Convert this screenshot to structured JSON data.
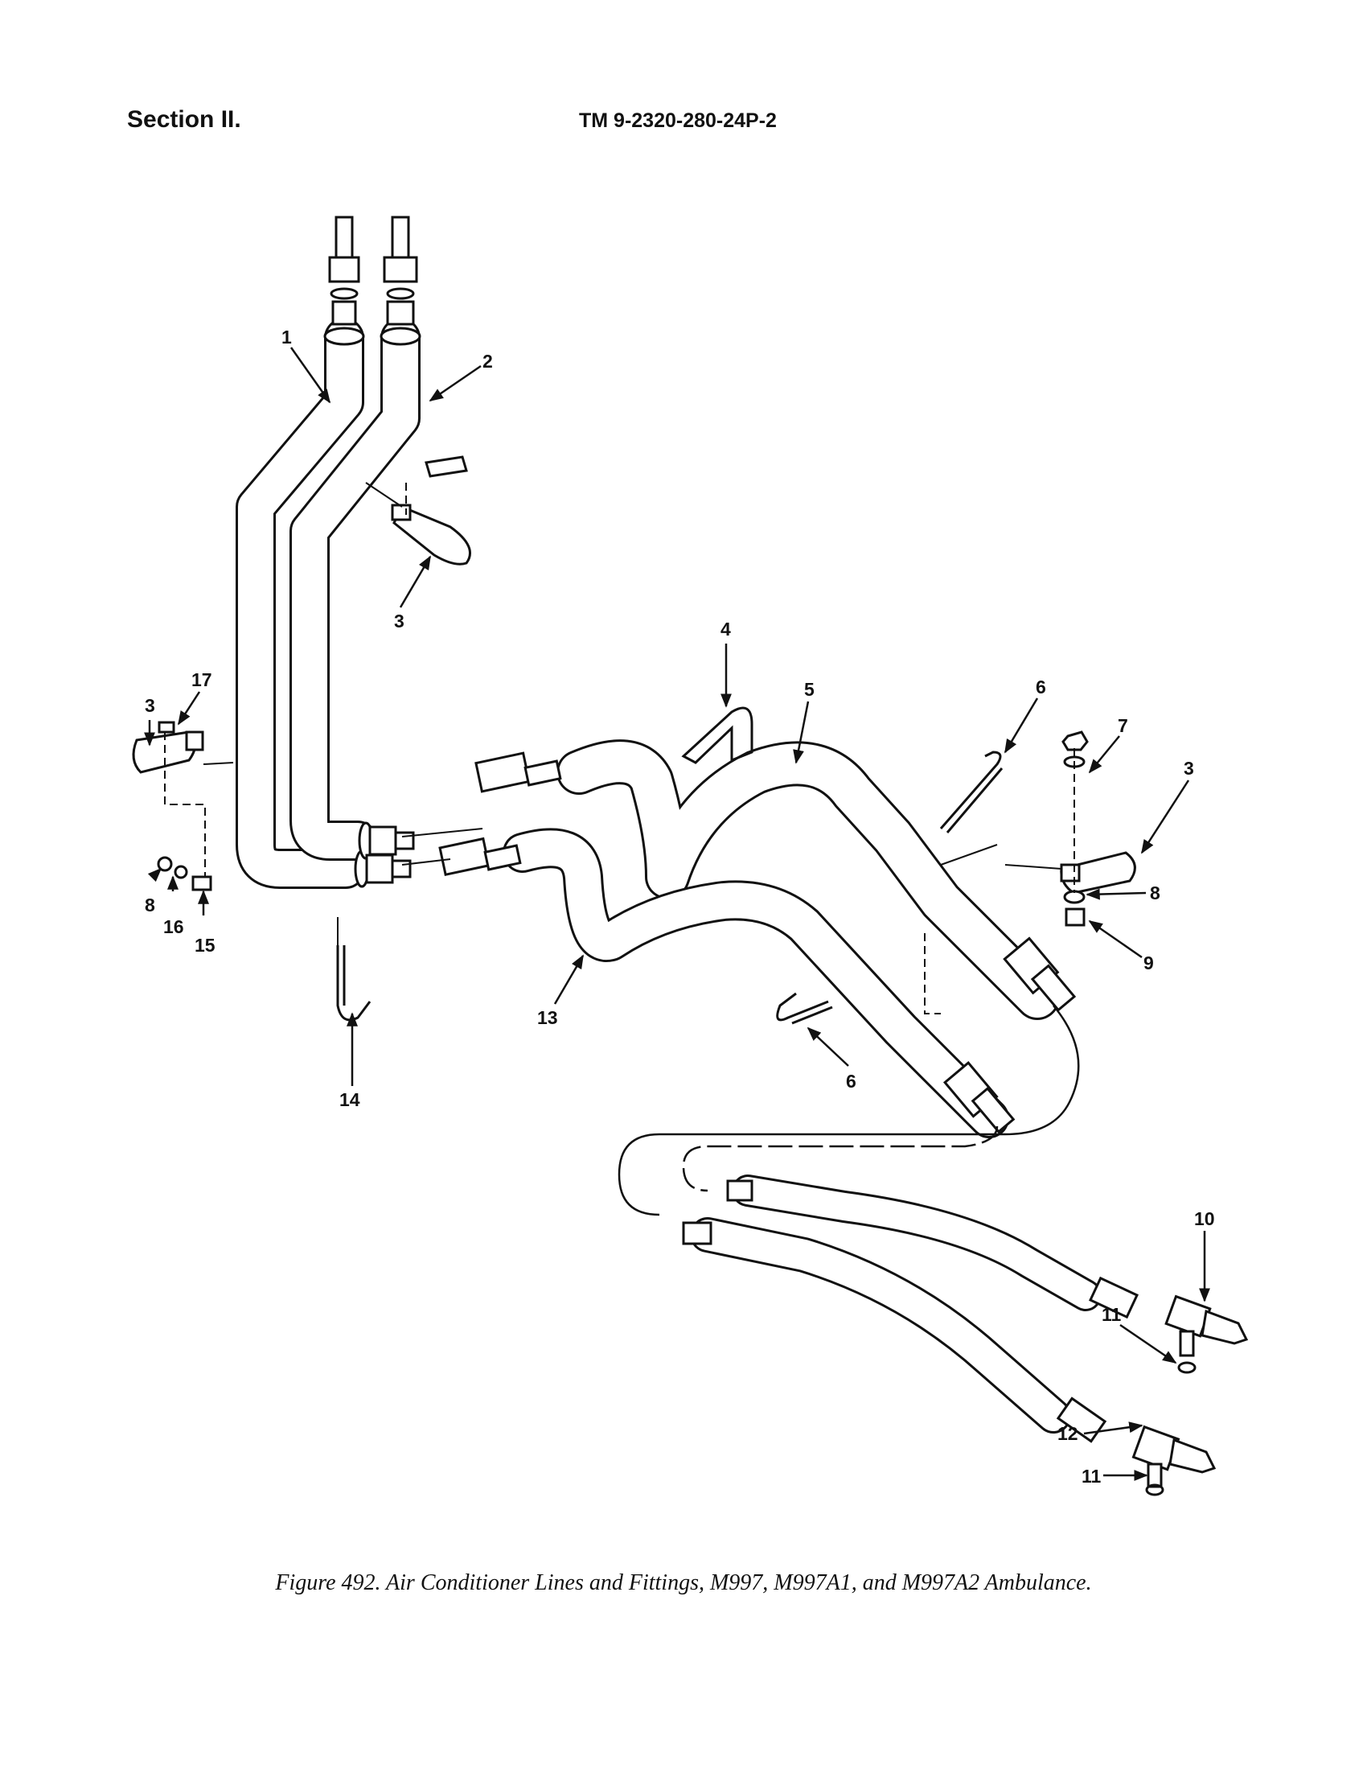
{
  "header": {
    "section": "Section II.",
    "tm_number": "TM 9-2320-280-24P-2"
  },
  "diagram": {
    "callouts": [
      "1",
      "2",
      "3",
      "4",
      "5",
      "6",
      "7",
      "3",
      "17",
      "3",
      "8",
      "16",
      "15",
      "8",
      "9",
      "14",
      "13",
      "6",
      "10",
      "11",
      "12",
      "11"
    ]
  },
  "caption": "Figure 492.  Air Conditioner Lines and Fittings, M997, M997A1, and M997A2 Ambulance."
}
